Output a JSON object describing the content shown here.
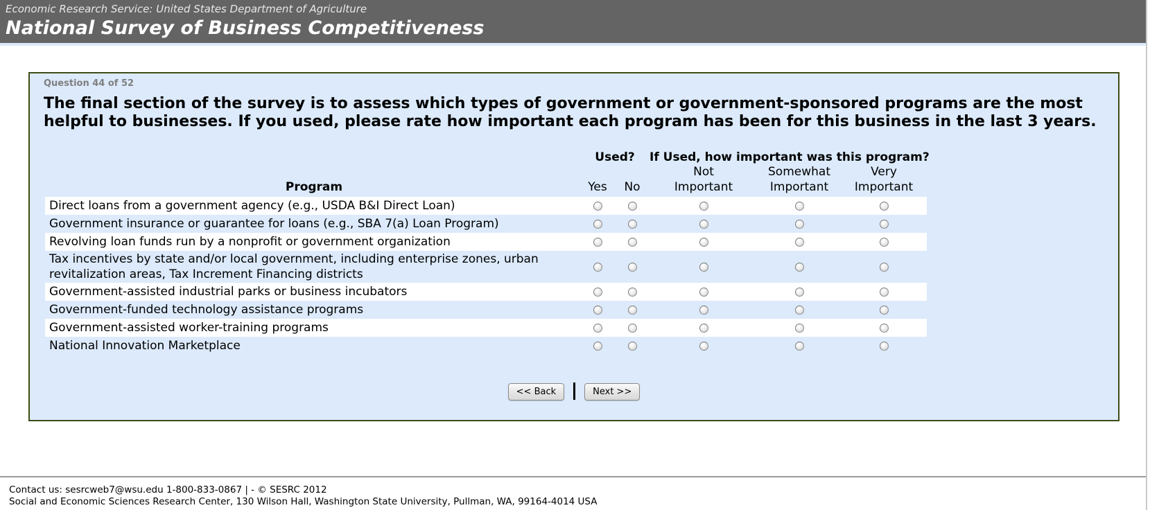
{
  "header": {
    "agency_line": "Economic Research Service: United States Department of Agriculture",
    "title": "National Survey of Business Competitiveness"
  },
  "question": {
    "progress_label": "Question 44 of 52",
    "text": "The final section of the survey is to assess which types of government or government-sponsored programs are the most helpful to businesses. If you used, please rate how important each program has been for this business in the last 3 years."
  },
  "table": {
    "used_header": "Used?",
    "importance_header": "If Used, how important was this program?",
    "program_header": "Program",
    "options": [
      "Yes",
      "No",
      "Not Important",
      "Somewhat Important",
      "Very Important"
    ],
    "rows": [
      {
        "label": "Direct loans from a government agency (e.g., USDA B&I Direct Loan)"
      },
      {
        "label": "Government insurance or guarantee for loans (e.g., SBA 7(a) Loan Program)"
      },
      {
        "label": "Revolving loan funds run by a nonprofit or government organization"
      },
      {
        "label": "Tax incentives by state and/or local government, including enterprise zones, urban revitalization areas, Tax Increment Financing districts"
      },
      {
        "label": "Government-assisted industrial parks or business incubators"
      },
      {
        "label": "Government-funded technology assistance programs"
      },
      {
        "label": "Government-assisted worker-training programs"
      },
      {
        "label": "National Innovation Marketplace"
      }
    ]
  },
  "buttons": {
    "back": "<< Back",
    "next": "Next >>"
  },
  "footer": {
    "line1": "Contact us: sesrcweb7@wsu.edu 1-800-833-0867 | - © SESRC 2012",
    "line2": "Social and Economic Sciences Research Center, 130 Wilson Hall, Washington State University, Pullman, WA, 99164-4014 USA"
  },
  "colors": {
    "header_bg": "#646464",
    "panel_bg": "#dceafb",
    "panel_border": "#3e4c17",
    "row_white": "#ffffff",
    "progress_gray": "#7f7f7f"
  }
}
